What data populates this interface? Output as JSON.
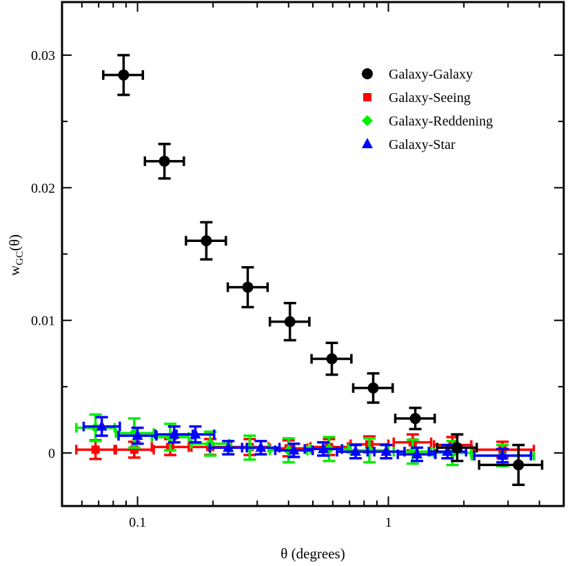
{
  "chart_data": {
    "type": "scatter",
    "title": "",
    "xlabel": "θ (degrees)",
    "ylabel": {
      "base": "w",
      "subscript": "GC",
      "suffix": "(θ)"
    },
    "xscale": "log",
    "xlim": [
      0.05,
      5.0
    ],
    "ylim": [
      -0.004,
      0.034
    ],
    "x_tick_labels": [
      {
        "value": 0.1,
        "label": "0.1"
      },
      {
        "value": 1,
        "label": "1"
      }
    ],
    "y_tick_labels": [
      {
        "value": 0,
        "label": "0"
      },
      {
        "value": 0.01,
        "label": "0.01"
      },
      {
        "value": 0.02,
        "label": "0.02"
      },
      {
        "value": 0.03,
        "label": "0.03"
      }
    ],
    "grid": false,
    "legend_position": "top-right",
    "series": [
      {
        "name": "Galaxy-Galaxy",
        "marker": "circle",
        "color": "#000000",
        "points": [
          {
            "x": 0.088,
            "y": 0.0285,
            "xerr": [
              0.073,
              0.105
            ],
            "yerr": 0.0015
          },
          {
            "x": 0.128,
            "y": 0.022,
            "xerr": [
              0.107,
              0.153
            ],
            "yerr": 0.0013
          },
          {
            "x": 0.188,
            "y": 0.016,
            "xerr": [
              0.156,
              0.225
            ],
            "yerr": 0.0014
          },
          {
            "x": 0.275,
            "y": 0.0125,
            "xerr": [
              0.229,
              0.33
            ],
            "yerr": 0.0015
          },
          {
            "x": 0.405,
            "y": 0.0099,
            "xerr": [
              0.337,
              0.484
            ],
            "yerr": 0.0014
          },
          {
            "x": 0.595,
            "y": 0.0071,
            "xerr": [
              0.494,
              0.712
            ],
            "yerr": 0.0012
          },
          {
            "x": 0.87,
            "y": 0.0049,
            "xerr": [
              0.724,
              1.04
            ],
            "yerr": 0.0011
          },
          {
            "x": 1.28,
            "y": 0.0026,
            "xerr": [
              1.065,
              1.53
            ],
            "yerr": 0.0008
          },
          {
            "x": 1.88,
            "y": 0.0004,
            "xerr": [
              1.565,
              2.25
            ],
            "yerr": 0.001
          },
          {
            "x": 3.3,
            "y": -0.0009,
            "xerr": [
              2.3,
              4.1
            ],
            "yerr": 0.0015
          }
        ]
      },
      {
        "name": "Galaxy-Seeing",
        "marker": "square",
        "color": "#ff0000",
        "points": [
          {
            "x": 0.068,
            "y": 0.00025,
            "xerr": [
              0.057,
              0.081
            ],
            "yerr": 0.0007
          },
          {
            "x": 0.097,
            "y": 0.00025,
            "xerr": [
              0.082,
              0.116
            ],
            "yerr": 0.0006
          },
          {
            "x": 0.135,
            "y": 0.00045,
            "xerr": [
              0.114,
              0.16
            ],
            "yerr": 0.0006
          },
          {
            "x": 0.195,
            "y": 0.00045,
            "xerr": [
              0.164,
              0.232
            ],
            "yerr": 0.0006
          },
          {
            "x": 0.28,
            "y": 0.00045,
            "xerr": [
              0.236,
              0.333
            ],
            "yerr": 0.0006
          },
          {
            "x": 0.4,
            "y": 0.00035,
            "xerr": [
              0.337,
              0.475
            ],
            "yerr": 0.0006
          },
          {
            "x": 0.58,
            "y": 0.00045,
            "xerr": [
              0.489,
              0.69
            ],
            "yerr": 0.0006
          },
          {
            "x": 0.84,
            "y": 0.00065,
            "xerr": [
              0.707,
              1.0
            ],
            "yerr": 0.0006
          },
          {
            "x": 1.25,
            "y": 0.0008,
            "xerr": [
              1.05,
              1.48
            ],
            "yerr": 0.0006
          },
          {
            "x": 1.8,
            "y": 0.0006,
            "xerr": [
              1.52,
              2.14
            ],
            "yerr": 0.0006
          },
          {
            "x": 2.85,
            "y": 0.00025,
            "xerr": [
              2.15,
              3.8
            ],
            "yerr": 0.0006
          }
        ]
      },
      {
        "name": "Galaxy-Reddening",
        "marker": "diamond",
        "color": "#00ee00",
        "points": [
          {
            "x": 0.068,
            "y": 0.0019,
            "xerr": [
              0.057,
              0.081
            ],
            "yerr": 0.001
          },
          {
            "x": 0.097,
            "y": 0.0015,
            "xerr": [
              0.082,
              0.116
            ],
            "yerr": 0.0011
          },
          {
            "x": 0.135,
            "y": 0.0012,
            "xerr": [
              0.114,
              0.16
            ],
            "yerr": 0.001
          },
          {
            "x": 0.195,
            "y": 0.0007,
            "xerr": [
              0.164,
              0.232
            ],
            "yerr": 0.0009
          },
          {
            "x": 0.28,
            "y": 0.0004,
            "xerr": [
              0.236,
              0.333
            ],
            "yerr": 0.0009
          },
          {
            "x": 0.4,
            "y": 0.0002,
            "xerr": [
              0.337,
              0.475
            ],
            "yerr": 0.0009
          },
          {
            "x": 0.58,
            "y": 0.0003,
            "xerr": [
              0.489,
              0.69
            ],
            "yerr": 0.0009
          },
          {
            "x": 0.84,
            "y": 0.0002,
            "xerr": [
              0.707,
              1.0
            ],
            "yerr": 0.0009
          },
          {
            "x": 1.25,
            "y": 0.0001,
            "xerr": [
              1.05,
              1.48
            ],
            "yerr": 0.0009
          },
          {
            "x": 1.8,
            "y": 0.0,
            "xerr": [
              1.52,
              2.14
            ],
            "yerr": 0.0009
          },
          {
            "x": 2.85,
            "y": -0.0002,
            "xerr": [
              2.15,
              3.8
            ],
            "yerr": 0.0008
          }
        ]
      },
      {
        "name": "Galaxy-Star",
        "marker": "triangle",
        "color": "#0000ff",
        "points": [
          {
            "x": 0.072,
            "y": 0.002,
            "xerr": [
              0.061,
              0.085
            ],
            "yerr": 0.0007
          },
          {
            "x": 0.1,
            "y": 0.0013,
            "xerr": [
              0.084,
              0.119
            ],
            "yerr": 0.0006
          },
          {
            "x": 0.14,
            "y": 0.0014,
            "xerr": [
              0.118,
              0.166
            ],
            "yerr": 0.0006
          },
          {
            "x": 0.17,
            "y": 0.0014,
            "xerr": [
              0.143,
              0.202
            ],
            "yerr": 0.0006
          },
          {
            "x": 0.23,
            "y": 0.0004,
            "xerr": [
              0.194,
              0.273
            ],
            "yerr": 0.0005
          },
          {
            "x": 0.31,
            "y": 0.0004,
            "xerr": [
              0.261,
              0.368
            ],
            "yerr": 0.0005
          },
          {
            "x": 0.42,
            "y": 0.0002,
            "xerr": [
              0.354,
              0.499
            ],
            "yerr": 0.0005
          },
          {
            "x": 0.55,
            "y": 0.0003,
            "xerr": [
              0.464,
              0.653
            ],
            "yerr": 0.0005
          },
          {
            "x": 0.74,
            "y": 0.0001,
            "xerr": [
              0.624,
              0.879
            ],
            "yerr": 0.0005
          },
          {
            "x": 0.98,
            "y": 0.0001,
            "xerr": [
              0.826,
              1.16
            ],
            "yerr": 0.0005
          },
          {
            "x": 1.3,
            "y": -0.0001,
            "xerr": [
              1.09,
              1.54
            ],
            "yerr": 0.0005
          },
          {
            "x": 1.72,
            "y": 0.0001,
            "xerr": [
              1.45,
              2.04
            ],
            "yerr": 0.0005
          },
          {
            "x": 2.85,
            "y": -0.0002,
            "xerr": [
              2.2,
              3.7
            ],
            "yerr": 0.0005
          }
        ]
      }
    ]
  }
}
